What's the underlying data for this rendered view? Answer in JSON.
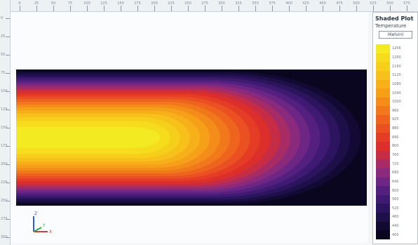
{
  "window": {
    "background": "#f4f6f8"
  },
  "legend": {
    "title": "Shaded Plot",
    "subtitle": "Temperature",
    "unit": "(Kelvin)",
    "colors": [
      "#f3ea22",
      "#f5dd1e",
      "#f6cf1b",
      "#f7c01a",
      "#f7b019",
      "#f69f19",
      "#f48c1a",
      "#f2781c",
      "#ee641f",
      "#ea5022",
      "#e53d25",
      "#dc2f2b",
      "#c62d45",
      "#a72c65",
      "#8a2a7d",
      "#6e2685",
      "#542080",
      "#3f1a72",
      "#2c145f",
      "#1d0f48",
      "#120a33",
      "#0a0620"
    ],
    "labels": [
      "1256",
      "1200",
      "1160",
      "1120",
      "1080",
      "1040",
      "1000",
      "960",
      "920",
      "880",
      "840",
      "800",
      "760",
      "720",
      "680",
      "640",
      "600",
      "560",
      "520",
      "480",
      "440",
      "400"
    ]
  },
  "ruler": {
    "top_labels": [
      "0",
      "25",
      "50",
      "75",
      "100",
      "125",
      "150",
      "175",
      "200",
      "225",
      "250",
      "275",
      "300",
      "325",
      "350",
      "375",
      "400",
      "425",
      "450",
      "475",
      "500",
      "525",
      "550",
      "575"
    ],
    "left_labels": [
      "0",
      "25",
      "50",
      "75",
      "100",
      "125",
      "150",
      "175",
      "200",
      "225",
      "250",
      "275",
      "300"
    ]
  },
  "triad": {
    "x_label": "X",
    "y_label": "Y",
    "z_label": "Z",
    "x_color": "#d93a3a",
    "y_color": "#2ea84a",
    "z_color": "#2b5fd9"
  }
}
